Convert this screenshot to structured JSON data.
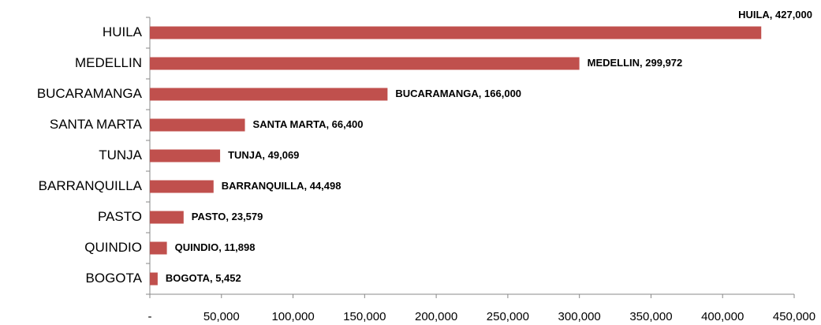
{
  "chart_data": {
    "type": "hbar",
    "categories": [
      "HUILA",
      "MEDELLIN",
      "BUCARAMANGA",
      "SANTA MARTA",
      "TUNJA",
      "BARRANQUILLA",
      "PASTO",
      "QUINDIO",
      "BOGOTA"
    ],
    "values": [
      427000,
      299972,
      166000,
      66400,
      49069,
      44498,
      23579,
      11898,
      5452
    ],
    "value_labels": [
      "HUILA,  427,000",
      "MEDELLIN,  299,972",
      "BUCARAMANGA,  166,000",
      "SANTA MARTA,  66,400",
      "TUNJA,  49,069",
      "BARRANQUILLA,  44,498",
      "PASTO,  23,579",
      "QUINDIO,  11,898",
      "BOGOTA,  5,452"
    ],
    "color": "#c0504d",
    "xlim": [
      0,
      450000
    ],
    "xticks": [
      {
        "value": 0,
        "label": "-"
      },
      {
        "value": 50000,
        "label": "50,000"
      },
      {
        "value": 100000,
        "label": "100,000"
      },
      {
        "value": 150000,
        "label": "150,000"
      },
      {
        "value": 200000,
        "label": "200,000"
      },
      {
        "value": 250000,
        "label": "250,000"
      },
      {
        "value": 300000,
        "label": "300,000"
      },
      {
        "value": 350000,
        "label": "350,000"
      },
      {
        "value": 400000,
        "label": "400,000"
      },
      {
        "value": 450000,
        "label": "450,000"
      }
    ],
    "grid": false
  }
}
